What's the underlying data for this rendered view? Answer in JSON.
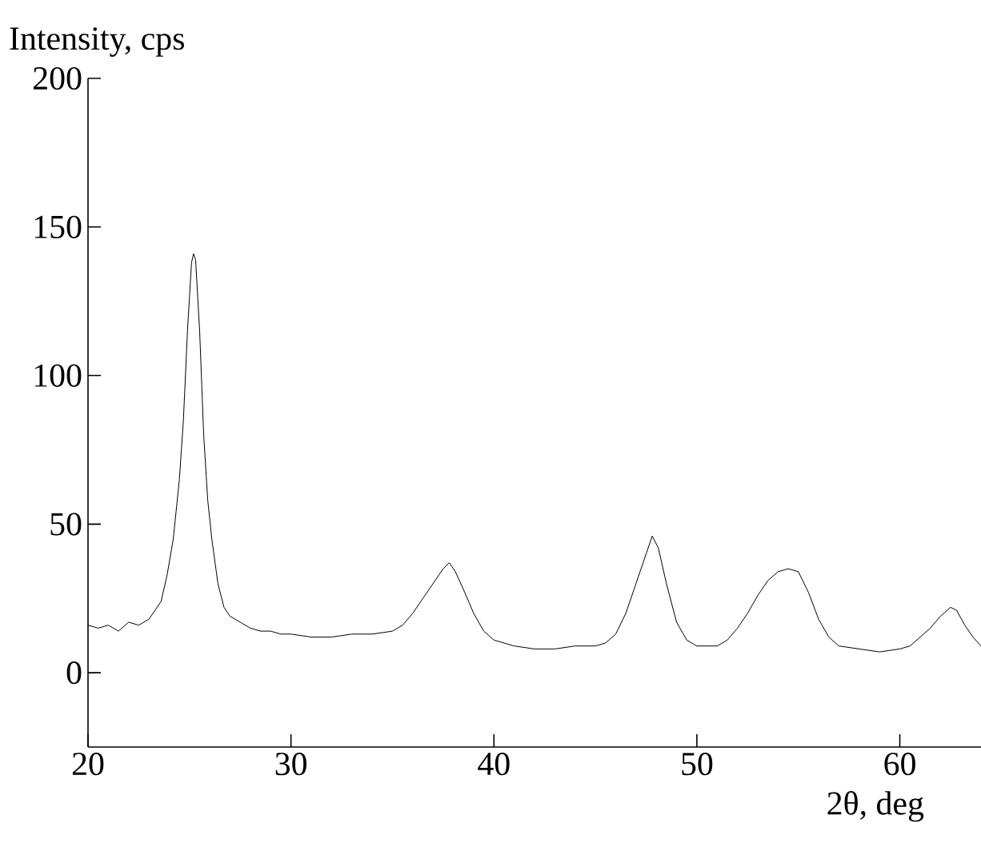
{
  "chart_data": {
    "type": "line",
    "xlabel": "2θ, deg",
    "ylabel": "Intensity, cps",
    "xlim": [
      20,
      64
    ],
    "ylim": [
      -25,
      200
    ],
    "xticks": [
      20,
      30,
      40,
      50,
      60
    ],
    "yticks": [
      0,
      50,
      100,
      150,
      200
    ],
    "series": [
      {
        "color": "#000000",
        "x": [
          20,
          20.5,
          21,
          21.5,
          22,
          22.5,
          23,
          23.3,
          23.6,
          23.9,
          24.2,
          24.5,
          24.7,
          24.9,
          25.1,
          25.2,
          25.3,
          25.5,
          25.7,
          25.9,
          26.1,
          26.4,
          26.7,
          27,
          27.5,
          28,
          28.5,
          29,
          29.5,
          30,
          31,
          32,
          33,
          34,
          35,
          35.5,
          36,
          36.5,
          37,
          37.5,
          37.8,
          38.1,
          38.5,
          39,
          39.5,
          40,
          41,
          42,
          43,
          44,
          45,
          45.5,
          46,
          46.5,
          47,
          47.5,
          47.8,
          48.1,
          48.5,
          49,
          49.5,
          50,
          51,
          51.5,
          52,
          52.5,
          53,
          53.5,
          54,
          54.5,
          55,
          55.5,
          56,
          56.5,
          57,
          58,
          59,
          60,
          60.5,
          61,
          61.5,
          62,
          62.5,
          62.8,
          63.2,
          63.6,
          64
        ],
        "values": [
          16,
          15,
          16,
          14,
          17,
          16,
          18,
          21,
          24,
          33,
          45,
          65,
          85,
          115,
          138,
          141,
          139,
          115,
          80,
          58,
          45,
          30,
          22,
          19,
          17,
          15,
          14,
          14,
          13,
          13,
          12,
          12,
          13,
          13,
          14,
          16,
          20,
          25,
          30,
          35,
          37,
          34,
          28,
          20,
          14,
          11,
          9,
          8,
          8,
          9,
          9,
          10,
          13,
          20,
          30,
          40,
          46,
          42,
          30,
          17,
          11,
          9,
          9,
          11,
          15,
          20,
          26,
          31,
          34,
          35,
          34,
          27,
          18,
          12,
          9,
          8,
          7,
          8,
          9,
          12,
          15,
          19,
          22,
          21,
          16,
          12,
          9
        ]
      }
    ]
  }
}
